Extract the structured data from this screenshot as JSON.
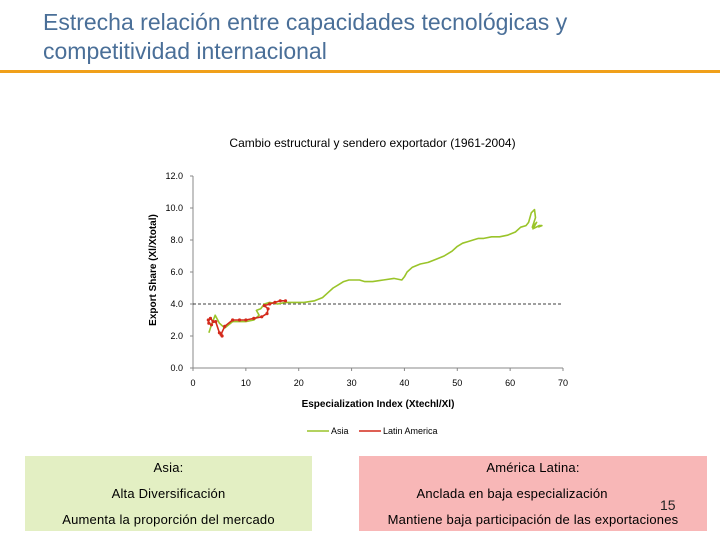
{
  "slide": {
    "title": "Estrecha relación entre capacidades tecnológicas y competitividad internacional",
    "page_number": "15",
    "accent_color": "#f0a01a",
    "title_color": "#4a6f98"
  },
  "chart_data": {
    "type": "line",
    "title": "Cambio estructural y sendero exportador (1961-2004)",
    "xlabel": "Especialization Index (Xtechl/Xl)",
    "ylabel": "Export Share (Xl/Xtotal)",
    "xlim": [
      0,
      70
    ],
    "ylim": [
      0,
      12
    ],
    "x_ticks": [
      0,
      10,
      20,
      30,
      40,
      50,
      60,
      70
    ],
    "y_ticks": [
      "0.0",
      "2.0",
      "4.0",
      "6.0",
      "8.0",
      "10.0",
      "12.0"
    ],
    "reference_line_y": 4.0,
    "legend_position": "bottom",
    "series": [
      {
        "name": "Asia",
        "color": "#9ac42a",
        "x": [
          3.0,
          3.5,
          4.2,
          5.0,
          6.0,
          7.5,
          9.0,
          10.0,
          11.5,
          12.5,
          12.0,
          12.8,
          13.5,
          14.5,
          16.0,
          17.5,
          19.0,
          21.0,
          23.0,
          24.5,
          25.5,
          26.5,
          27.5,
          28.5,
          29.5,
          30.5,
          31.5,
          32.5,
          34.0,
          36.0,
          38.0,
          39.5,
          40.0,
          40.5,
          41.5,
          43.0,
          44.5,
          46.0,
          47.5,
          49.0,
          50.0,
          51.0,
          52.0,
          53.0,
          54.0,
          55.0,
          56.5,
          58.0,
          59.5,
          61.0,
          62.0,
          63.0,
          63.5,
          64.0,
          64.6,
          64.8,
          64.2,
          65.0,
          64.3,
          65.5,
          66.0,
          65.3
        ],
        "y": [
          2.2,
          2.7,
          3.3,
          2.8,
          2.5,
          2.9,
          2.9,
          2.9,
          3.0,
          3.3,
          3.6,
          3.7,
          4.0,
          4.1,
          4.0,
          4.1,
          4.1,
          4.1,
          4.2,
          4.4,
          4.7,
          5.0,
          5.2,
          5.4,
          5.5,
          5.5,
          5.5,
          5.4,
          5.4,
          5.5,
          5.6,
          5.5,
          5.7,
          6.0,
          6.3,
          6.5,
          6.6,
          6.8,
          7.0,
          7.3,
          7.6,
          7.8,
          7.9,
          8.0,
          8.1,
          8.1,
          8.2,
          8.2,
          8.3,
          8.5,
          8.8,
          8.9,
          9.1,
          9.7,
          9.9,
          9.4,
          8.8,
          9.1,
          8.7,
          8.9,
          8.9,
          8.8
        ]
      },
      {
        "name": "Latin America",
        "color": "#d42a1c",
        "x": [
          3.5,
          3.0,
          2.9,
          3.3,
          3.8,
          4.3,
          5.0,
          5.5,
          5.3,
          6.0,
          7.5,
          8.8,
          10.0,
          11.5,
          13.0,
          14.0,
          14.2,
          13.5,
          14.5,
          15.5,
          16.5,
          17.5
        ],
        "y": [
          2.7,
          2.8,
          3.0,
          3.1,
          2.9,
          2.9,
          2.2,
          2.0,
          2.1,
          2.6,
          3.0,
          3.0,
          3.0,
          3.1,
          3.2,
          3.4,
          3.7,
          3.9,
          4.0,
          4.1,
          4.2,
          4.2
        ]
      }
    ]
  },
  "panels": {
    "asia": {
      "heading": "Asia:",
      "line1": "Alta Diversificación",
      "line2": "Aumenta la proporción del mercado",
      "bg_color": "#e3efc3"
    },
    "latam": {
      "heading": "América Latina:",
      "line1": "Anclada en baja especialización",
      "line2": "Mantiene baja participación de las exportaciones",
      "bg_color": "#f8b7b7"
    }
  }
}
